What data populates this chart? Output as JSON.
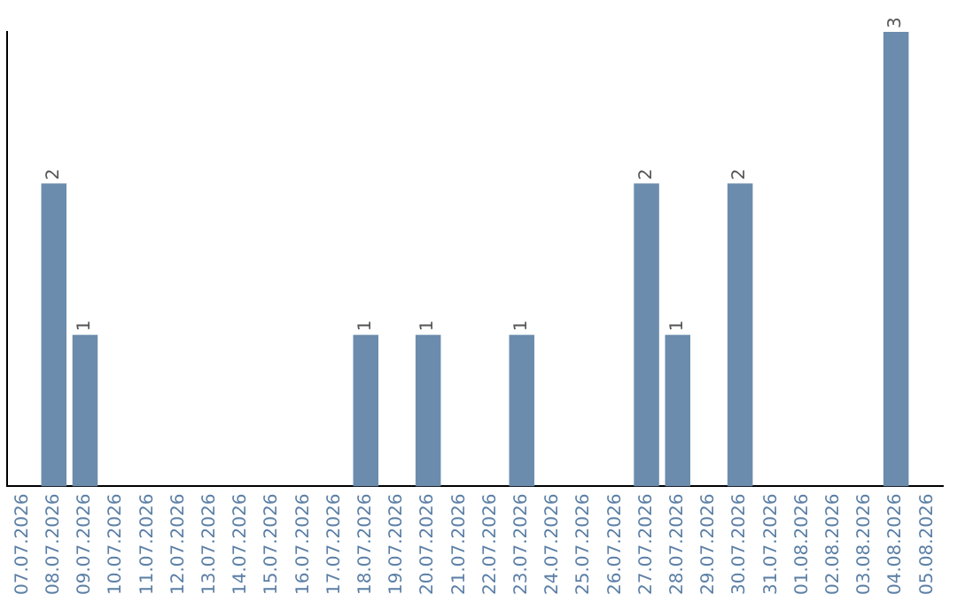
{
  "chart_data": {
    "type": "bar",
    "color": "#6b8cad",
    "categories": [
      "07.07.2026",
      "08.07.2026",
      "09.07.2026",
      "10.07.2026",
      "11.07.2026",
      "12.07.2026",
      "13.07.2026",
      "14.07.2026",
      "15.07.2026",
      "16.07.2026",
      "17.07.2026",
      "18.07.2026",
      "19.07.2026",
      "20.07.2026",
      "21.07.2026",
      "22.07.2026",
      "23.07.2026",
      "24.07.2026",
      "25.07.2026",
      "26.07.2026",
      "27.07.2026",
      "28.07.2026",
      "29.07.2026",
      "30.07.2026",
      "31.07.2026",
      "01.08.2026",
      "02.08.2026",
      "03.08.2026",
      "04.08.2026",
      "05.08.2026"
    ],
    "values": [
      0,
      2,
      1,
      0,
      0,
      0,
      0,
      0,
      0,
      0,
      0,
      1,
      0,
      1,
      0,
      0,
      1,
      0,
      0,
      0,
      2,
      1,
      0,
      2,
      0,
      0,
      0,
      0,
      3,
      0
    ],
    "value_labels": [
      null,
      "2",
      "1",
      null,
      null,
      null,
      null,
      null,
      null,
      null,
      null,
      "1",
      null,
      "1",
      null,
      null,
      "1",
      null,
      null,
      null,
      "2",
      "1",
      null,
      "2",
      null,
      null,
      null,
      null,
      "3",
      null
    ],
    "tick_labels": "x",
    "grid": false,
    "legend": false
  }
}
